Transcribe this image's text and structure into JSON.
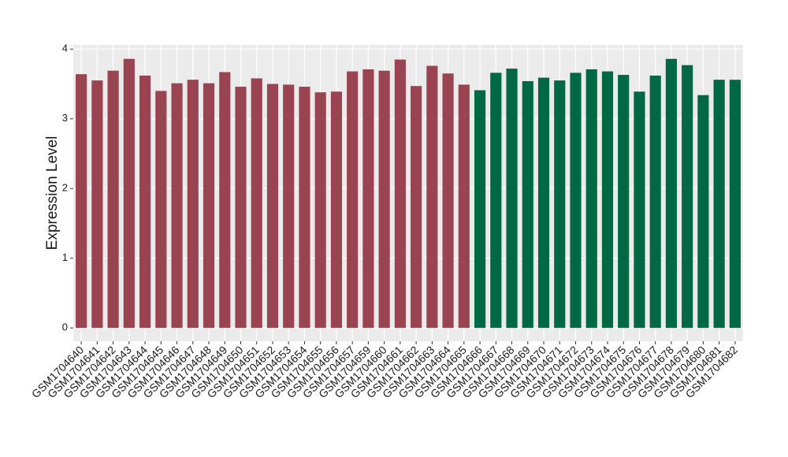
{
  "chart_data": {
    "type": "bar",
    "y_label": "Expression Level",
    "categories": [
      "GSM1704640",
      "GSM1704641",
      "GSM1704642",
      "GSM1704643",
      "GSM1704644",
      "GSM1704645",
      "GSM1704646",
      "GSM1704647",
      "GSM1704648",
      "GSM1704649",
      "GSM1704650",
      "GSM1704651",
      "GSM1704652",
      "GSM1704653",
      "GSM1704654",
      "GSM1704655",
      "GSM1704656",
      "GSM1704657",
      "GSM1704659",
      "GSM1704660",
      "GSM1704661",
      "GSM1704662",
      "GSM1704663",
      "GSM1704664",
      "GSM1704665",
      "GSM1704666",
      "GSM1704667",
      "GSM1704668",
      "GSM1704669",
      "GSM1704670",
      "GSM1704671",
      "GSM1704672",
      "GSM1704673",
      "GSM1704674",
      "GSM1704675",
      "GSM1704676",
      "GSM1704677",
      "GSM1704678",
      "GSM1704679",
      "GSM1704680",
      "GSM1704681",
      "GSM1704682"
    ],
    "values": [
      3.64,
      3.55,
      3.69,
      3.86,
      3.62,
      3.4,
      3.51,
      3.56,
      3.51,
      3.67,
      3.46,
      3.58,
      3.5,
      3.49,
      3.46,
      3.38,
      3.39,
      3.68,
      3.71,
      3.69,
      3.85,
      3.47,
      3.76,
      3.65,
      3.49,
      3.41,
      3.66,
      3.72,
      3.54,
      3.59,
      3.55,
      3.66,
      3.71,
      3.68,
      3.63,
      3.39,
      3.62,
      3.86,
      3.77,
      3.34,
      3.56,
      3.56
    ],
    "colors": [
      "#994450",
      "#994450",
      "#994450",
      "#994450",
      "#994450",
      "#994450",
      "#994450",
      "#994450",
      "#994450",
      "#994450",
      "#994450",
      "#994450",
      "#994450",
      "#994450",
      "#994450",
      "#994450",
      "#994450",
      "#994450",
      "#994450",
      "#994450",
      "#994450",
      "#994450",
      "#994450",
      "#994450",
      "#994450",
      "#006845",
      "#006845",
      "#006845",
      "#006845",
      "#006845",
      "#006845",
      "#006845",
      "#006845",
      "#006845",
      "#006845",
      "#006845",
      "#006845",
      "#006845",
      "#006845",
      "#006845",
      "#006845",
      "#006845"
    ],
    "ylim": [
      -0.19,
      4.06
    ],
    "yticks": [
      0,
      1,
      2,
      3,
      4
    ],
    "grid": true
  }
}
